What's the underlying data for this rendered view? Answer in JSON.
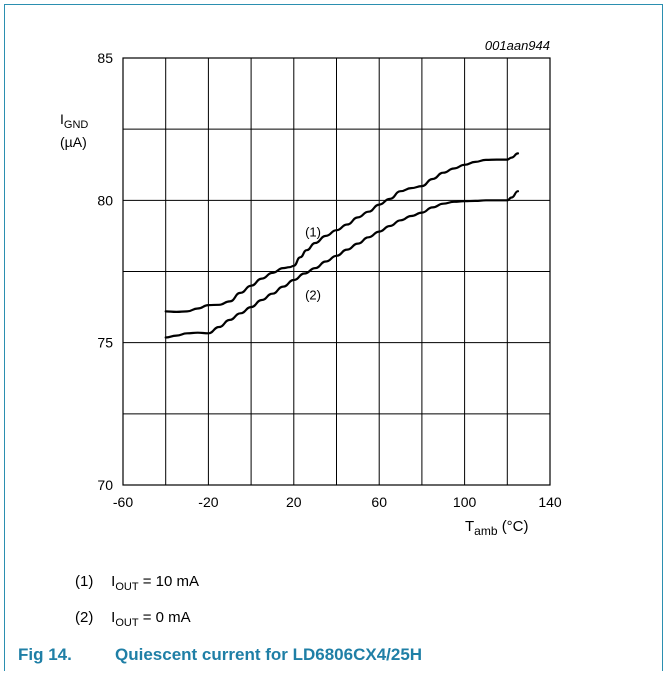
{
  "chart_data": {
    "type": "line",
    "figure_id": "001aan944",
    "ylabel": {
      "symbol": "I",
      "sub": "GND",
      "unit": "(µA)"
    },
    "xlabel": {
      "symbol": "T",
      "sub": "amb",
      "unit": "(°C)"
    },
    "xlim": [
      -60,
      140
    ],
    "ylim": [
      70,
      85
    ],
    "x_ticks": [
      -60,
      -20,
      20,
      60,
      100,
      140
    ],
    "y_ticks": [
      70,
      75,
      80,
      85
    ],
    "x_grid_step": 20,
    "y_grid_step": 2.5,
    "grid": true,
    "series": [
      {
        "name": "(1)",
        "label_at": [
          29,
          78.9
        ],
        "x": [
          -40,
          -35,
          -30,
          -25,
          -20,
          -15,
          -10,
          -5,
          0,
          5,
          10,
          15,
          18,
          20,
          23,
          26,
          30,
          35,
          40,
          45,
          50,
          55,
          60,
          65,
          70,
          75,
          80,
          85,
          90,
          95,
          100,
          105,
          110,
          115,
          120,
          122,
          125
        ],
        "y": [
          76.1,
          76.08,
          76.1,
          76.2,
          76.32,
          76.33,
          76.45,
          76.75,
          77.0,
          77.25,
          77.45,
          77.62,
          77.65,
          77.7,
          78.0,
          78.25,
          78.5,
          78.75,
          78.95,
          79.15,
          79.4,
          79.6,
          79.85,
          80.05,
          80.32,
          80.43,
          80.5,
          80.75,
          80.97,
          81.12,
          81.25,
          81.35,
          81.42,
          81.43,
          81.43,
          81.5,
          81.65
        ]
      },
      {
        "name": "(2)",
        "label_at": [
          29,
          76.7
        ],
        "x": [
          -40,
          -35,
          -30,
          -25,
          -20,
          -15,
          -10,
          -5,
          0,
          5,
          10,
          15,
          20,
          25,
          30,
          35,
          40,
          45,
          50,
          55,
          60,
          65,
          70,
          75,
          80,
          85,
          90,
          95,
          100,
          105,
          110,
          115,
          120,
          122,
          125
        ],
        "y": [
          75.18,
          75.25,
          75.33,
          75.35,
          75.33,
          75.55,
          75.8,
          76.03,
          76.25,
          76.5,
          76.72,
          76.97,
          77.2,
          77.43,
          77.62,
          77.85,
          78.05,
          78.27,
          78.48,
          78.7,
          78.9,
          79.1,
          79.3,
          79.45,
          79.57,
          79.75,
          79.88,
          79.95,
          79.97,
          79.98,
          80.0,
          80.0,
          80.0,
          80.1,
          80.32
        ]
      }
    ]
  },
  "notes": [
    {
      "num": "(1)",
      "symbol": "I",
      "sub": "OUT",
      "rest": " = 10 mA"
    },
    {
      "num": "(2)",
      "symbol": "I",
      "sub": "OUT",
      "rest": " = 0 mA"
    }
  ],
  "caption": {
    "fig": "Fig 14.",
    "text": "Quiescent current for LD6806CX4/25H"
  },
  "colors": {
    "frame": "#2b8fb0",
    "caption": "#1f7fa6",
    "grid": "#000000",
    "line": "#000000"
  }
}
